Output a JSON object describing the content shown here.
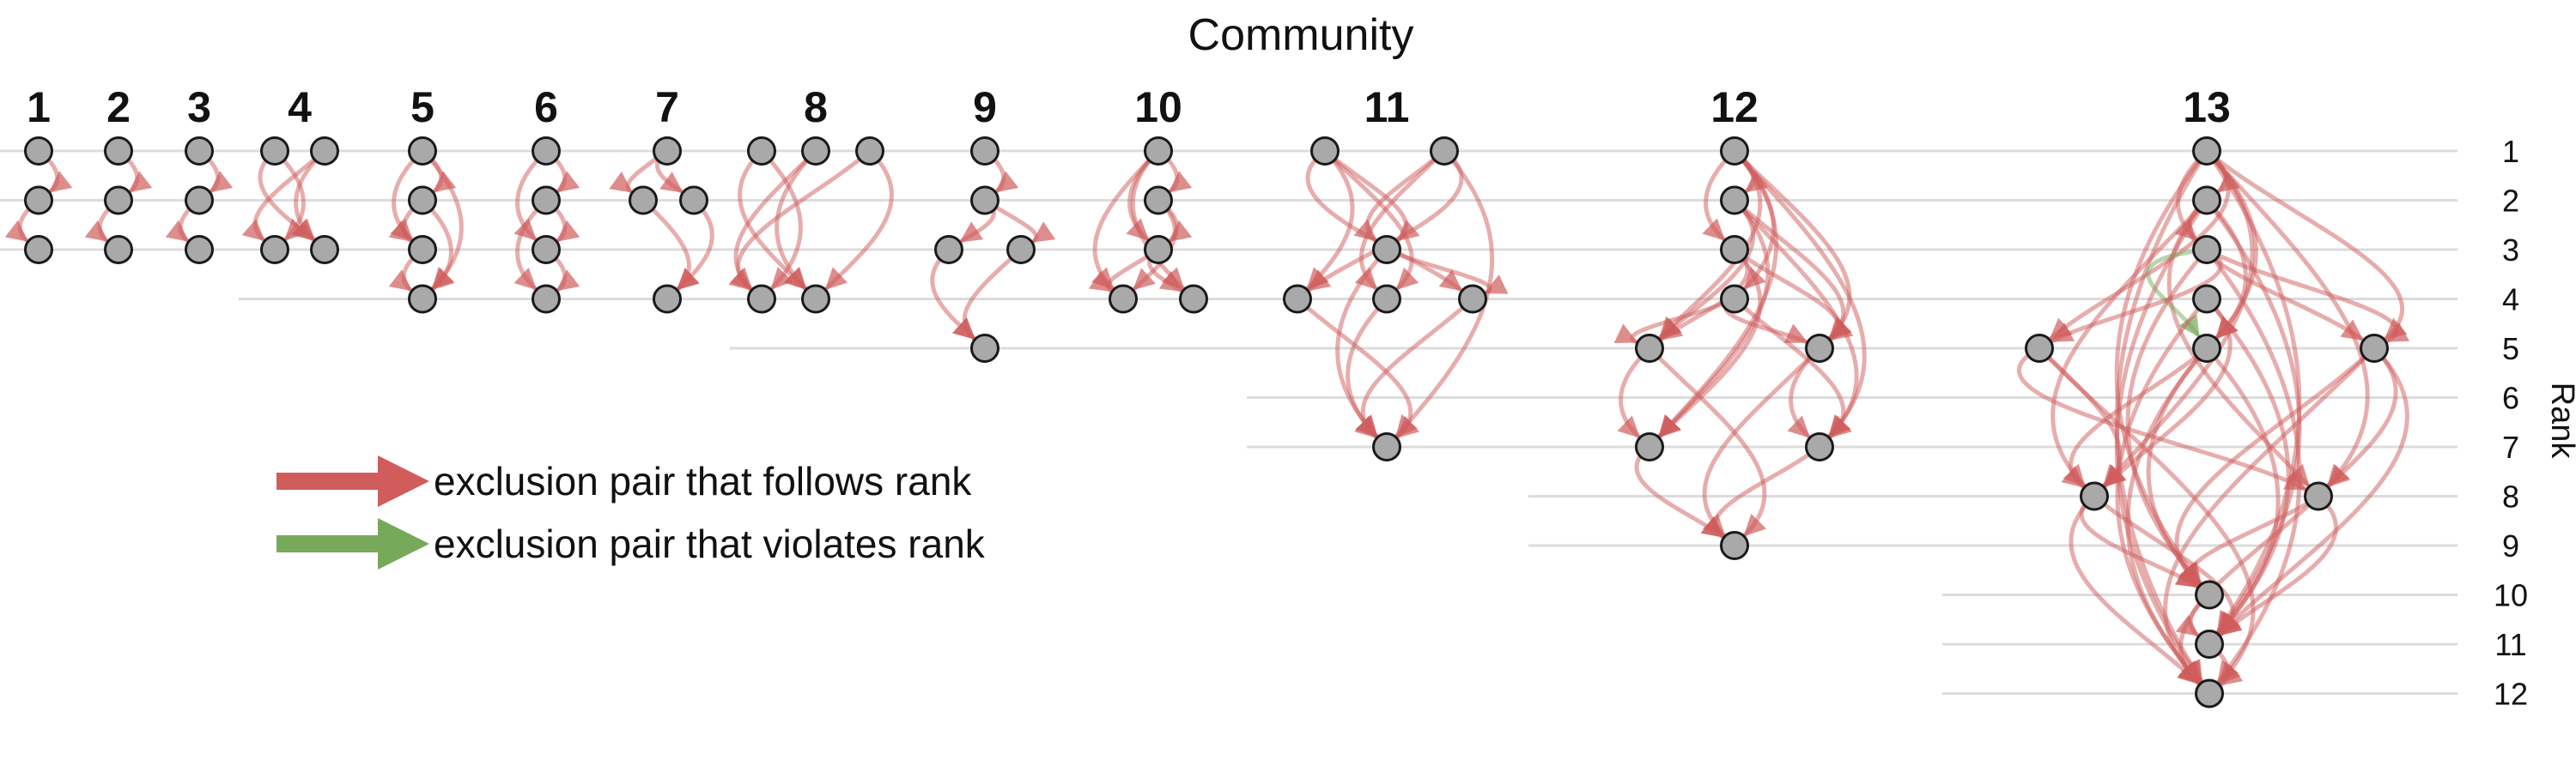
{
  "title": "Community",
  "rank_axis_label": "Rank",
  "rank_ticks": [
    "1",
    "2",
    "3",
    "4",
    "5",
    "6",
    "7",
    "8",
    "9",
    "10",
    "11",
    "12"
  ],
  "legend": {
    "follows": "exclusion pair that follows rank",
    "violates": "exclusion pair that violates rank"
  },
  "colors": {
    "follows": "#d05c5c",
    "violates": "#77a95a",
    "node": "#a9a9a9",
    "grid": "#dcdcdc"
  },
  "chart_data": {
    "type": "network",
    "communities": [
      {
        "label": "1",
        "max_rank": 3,
        "nodes": [
          [
            1,
            0
          ],
          [
            2,
            0
          ],
          [
            3,
            0
          ]
        ],
        "edges": [
          [
            0,
            1
          ],
          [
            1,
            2
          ]
        ]
      },
      {
        "label": "2",
        "max_rank": 3,
        "nodes": [
          [
            1,
            0
          ],
          [
            2,
            0
          ],
          [
            3,
            0
          ]
        ],
        "edges": [
          [
            0,
            1
          ],
          [
            1,
            2
          ]
        ]
      },
      {
        "label": "3",
        "max_rank": 3,
        "nodes": [
          [
            1,
            0
          ],
          [
            2,
            0
          ],
          [
            3,
            0
          ]
        ],
        "edges": [
          [
            0,
            1
          ],
          [
            1,
            2
          ]
        ]
      },
      {
        "label": "4",
        "max_rank": 3,
        "nodes": [
          [
            1,
            0
          ],
          [
            1,
            1
          ],
          [
            3,
            0
          ],
          [
            3,
            1
          ]
        ],
        "edges": [
          [
            0,
            2
          ],
          [
            0,
            3
          ],
          [
            1,
            2
          ],
          [
            1,
            3
          ]
        ]
      },
      {
        "label": "5",
        "max_rank": 4,
        "nodes": [
          [
            1,
            0
          ],
          [
            2,
            0
          ],
          [
            3,
            0
          ],
          [
            4,
            0
          ]
        ],
        "edges": [
          [
            0,
            1
          ],
          [
            0,
            2
          ],
          [
            0,
            3
          ],
          [
            1,
            2
          ],
          [
            1,
            3
          ],
          [
            2,
            3
          ]
        ]
      },
      {
        "label": "6",
        "max_rank": 4,
        "nodes": [
          [
            1,
            0
          ],
          [
            2,
            0
          ],
          [
            3,
            0
          ],
          [
            4,
            0
          ]
        ],
        "edges": [
          [
            0,
            1
          ],
          [
            0,
            2
          ],
          [
            1,
            2
          ],
          [
            1,
            3
          ],
          [
            2,
            3
          ]
        ]
      },
      {
        "label": "7",
        "max_rank": 4,
        "nodes": [
          [
            1,
            0
          ],
          [
            2,
            0
          ],
          [
            2,
            1
          ],
          [
            4,
            0
          ]
        ],
        "edges": [
          [
            0,
            1
          ],
          [
            0,
            2
          ],
          [
            1,
            3
          ],
          [
            2,
            3
          ]
        ]
      },
      {
        "label": "8",
        "max_rank": 4,
        "nodes": [
          [
            1,
            0
          ],
          [
            1,
            1
          ],
          [
            1,
            2
          ],
          [
            4,
            0
          ],
          [
            4,
            1
          ]
        ],
        "edges": [
          [
            0,
            3
          ],
          [
            0,
            4
          ],
          [
            1,
            3
          ],
          [
            1,
            4
          ],
          [
            2,
            3
          ],
          [
            2,
            4
          ]
        ]
      },
      {
        "label": "9",
        "max_rank": 5,
        "nodes": [
          [
            1,
            0
          ],
          [
            2,
            0
          ],
          [
            3,
            0
          ],
          [
            3,
            1
          ],
          [
            5,
            0
          ]
        ],
        "edges": [
          [
            0,
            1
          ],
          [
            1,
            2
          ],
          [
            1,
            3
          ],
          [
            2,
            4
          ],
          [
            3,
            4
          ]
        ]
      },
      {
        "label": "10",
        "max_rank": 4,
        "nodes": [
          [
            1,
            0
          ],
          [
            2,
            0
          ],
          [
            3,
            0
          ],
          [
            4,
            0
          ],
          [
            4,
            1
          ]
        ],
        "edges": [
          [
            0,
            1
          ],
          [
            0,
            2
          ],
          [
            0,
            3
          ],
          [
            0,
            4
          ],
          [
            1,
            2
          ],
          [
            1,
            3
          ],
          [
            2,
            3
          ],
          [
            2,
            4
          ]
        ]
      },
      {
        "label": "11",
        "max_rank": 7,
        "nodes": [
          [
            1,
            0
          ],
          [
            1,
            1
          ],
          [
            3,
            0
          ],
          [
            4,
            0
          ],
          [
            4,
            1
          ],
          [
            4,
            2
          ],
          [
            7,
            0
          ]
        ],
        "edges": [
          [
            0,
            2
          ],
          [
            0,
            3
          ],
          [
            0,
            4
          ],
          [
            0,
            5
          ],
          [
            1,
            2
          ],
          [
            1,
            3
          ],
          [
            1,
            4
          ],
          [
            1,
            6
          ],
          [
            2,
            5
          ],
          [
            2,
            6
          ],
          [
            3,
            6
          ],
          [
            4,
            6
          ],
          [
            5,
            6
          ]
        ]
      },
      {
        "label": "12",
        "max_rank": 9,
        "nodes": [
          [
            1,
            0
          ],
          [
            2,
            0
          ],
          [
            3,
            0
          ],
          [
            4,
            0
          ],
          [
            5,
            0
          ],
          [
            5,
            1
          ],
          [
            7,
            0
          ],
          [
            7,
            1
          ],
          [
            9,
            0
          ]
        ],
        "edges": [
          [
            0,
            1
          ],
          [
            0,
            2
          ],
          [
            0,
            3
          ],
          [
            0,
            4
          ],
          [
            0,
            5
          ],
          [
            0,
            6
          ],
          [
            0,
            7
          ],
          [
            1,
            4
          ],
          [
            1,
            5
          ],
          [
            1,
            6
          ],
          [
            1,
            7
          ],
          [
            2,
            4
          ],
          [
            2,
            5
          ],
          [
            2,
            6
          ],
          [
            3,
            4
          ],
          [
            3,
            5
          ],
          [
            3,
            7
          ],
          [
            4,
            6
          ],
          [
            4,
            8
          ],
          [
            5,
            7
          ],
          [
            5,
            8
          ],
          [
            6,
            8
          ],
          [
            7,
            8
          ]
        ]
      },
      {
        "label": "13",
        "max_rank": 12,
        "nodes": [
          [
            1,
            0
          ],
          [
            2,
            0
          ],
          [
            3,
            0
          ],
          [
            4,
            0
          ],
          [
            5,
            0
          ],
          [
            5,
            1
          ],
          [
            5,
            2
          ],
          [
            8,
            0
          ],
          [
            8,
            1
          ],
          [
            10,
            0
          ],
          [
            11,
            0
          ],
          [
            12,
            0
          ]
        ],
        "edges": [
          [
            0,
            1
          ],
          [
            0,
            2
          ],
          [
            0,
            4
          ],
          [
            0,
            5
          ],
          [
            0,
            6
          ],
          [
            0,
            7
          ],
          [
            0,
            8
          ],
          [
            0,
            9
          ],
          [
            0,
            10
          ],
          [
            0,
            11
          ],
          [
            1,
            4
          ],
          [
            1,
            6
          ],
          [
            1,
            7
          ],
          [
            1,
            8
          ],
          [
            1,
            10
          ],
          [
            1,
            11
          ],
          [
            2,
            4
          ],
          [
            2,
            5
          ],
          [
            2,
            6
          ],
          [
            2,
            9
          ],
          [
            2,
            11
          ],
          [
            3,
            7
          ],
          [
            3,
            10
          ],
          [
            3,
            11
          ],
          [
            4,
            7
          ],
          [
            4,
            9
          ],
          [
            4,
            10
          ],
          [
            4,
            11
          ],
          [
            5,
            7
          ],
          [
            5,
            8
          ],
          [
            5,
            11
          ],
          [
            6,
            8
          ],
          [
            6,
            9
          ],
          [
            6,
            10
          ],
          [
            6,
            11
          ],
          [
            7,
            9
          ],
          [
            7,
            10
          ],
          [
            7,
            11
          ],
          [
            8,
            9
          ],
          [
            8,
            10
          ],
          [
            8,
            11
          ],
          [
            9,
            10
          ],
          [
            10,
            11
          ]
        ],
        "violating_edges": [
          [
            2,
            4
          ]
        ]
      }
    ]
  }
}
